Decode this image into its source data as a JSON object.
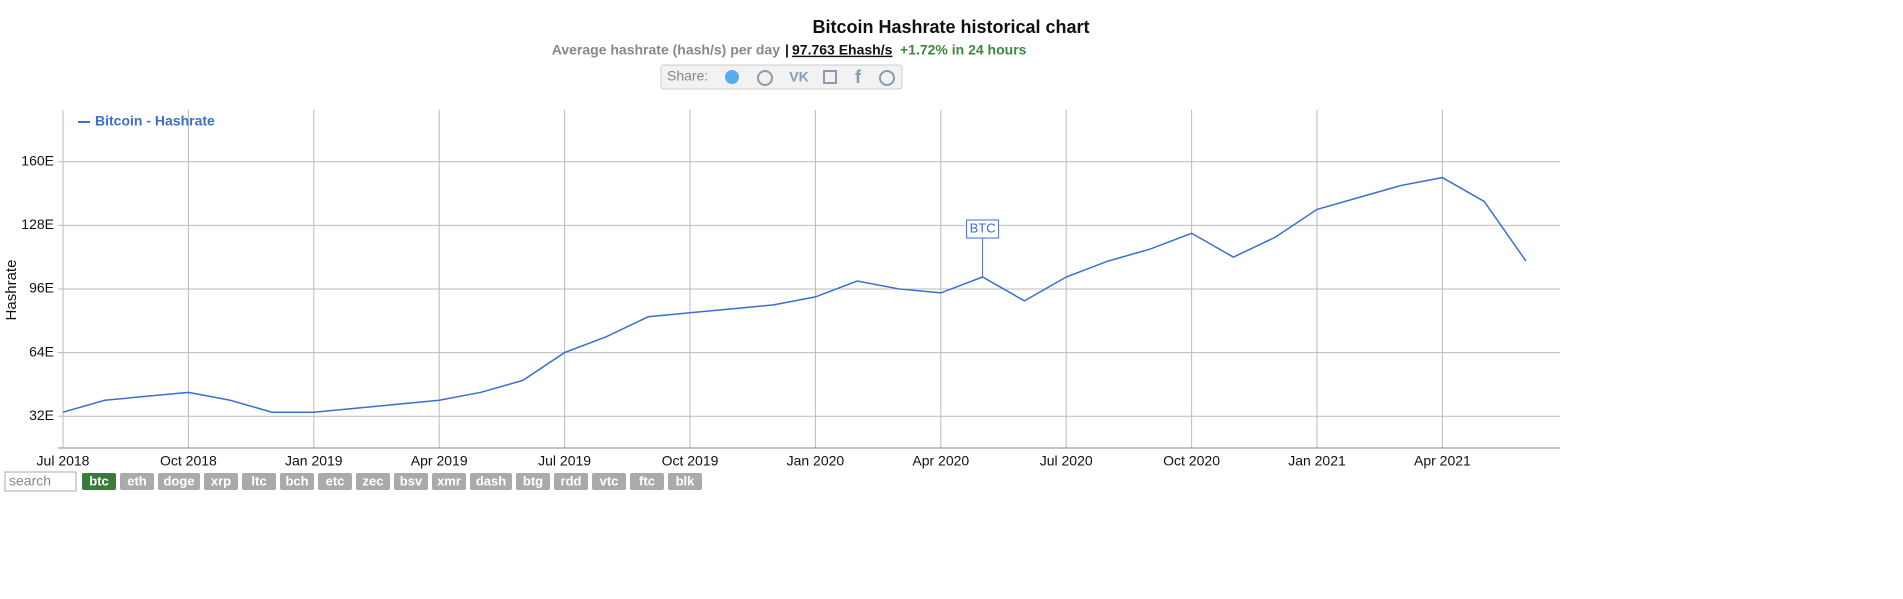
{
  "header": {
    "title": "Bitcoin Hashrate historical chart",
    "subtitle": "Average hashrate (hash/s) per day",
    "current_value": "97.763 Ehash/s",
    "change": "+1.72% in 24 hours",
    "share_label": "Share:"
  },
  "chart_data": {
    "type": "line",
    "y_label": "Hashrate",
    "annotation": "BTC",
    "grid": true,
    "legend_position": "top-left",
    "x": [
      "2018-07",
      "2018-08",
      "2018-09",
      "2018-10",
      "2018-11",
      "2018-12",
      "2019-01",
      "2019-02",
      "2019-03",
      "2019-04",
      "2019-05",
      "2019-06",
      "2019-07",
      "2019-08",
      "2019-09",
      "2019-10",
      "2019-11",
      "2019-12",
      "2020-01",
      "2020-02",
      "2020-03",
      "2020-04",
      "2020-05",
      "2020-06",
      "2020-07",
      "2020-08",
      "2020-09",
      "2020-10",
      "2020-11",
      "2020-12",
      "2021-01",
      "2021-02",
      "2021-03",
      "2021-04",
      "2021-05",
      "2021-06"
    ],
    "xticks": [
      {
        "value": "2018-07",
        "label": "Jul 2018"
      },
      {
        "value": "2018-10",
        "label": "Oct 2018"
      },
      {
        "value": "2019-01",
        "label": "Jan 2019"
      },
      {
        "value": "2019-04",
        "label": "Apr 2019"
      },
      {
        "value": "2019-07",
        "label": "Jul 2019"
      },
      {
        "value": "2019-10",
        "label": "Oct 2019"
      },
      {
        "value": "2020-01",
        "label": "Jan 2020"
      },
      {
        "value": "2020-04",
        "label": "Apr 2020"
      },
      {
        "value": "2020-07",
        "label": "Jul 2020"
      },
      {
        "value": "2020-10",
        "label": "Oct 2020"
      },
      {
        "value": "2021-01",
        "label": "Jan 2021"
      },
      {
        "value": "2021-04",
        "label": "Apr 2021"
      }
    ],
    "ylim": [
      16,
      186
    ],
    "yticks": [
      {
        "value": 32,
        "label": "32E"
      },
      {
        "value": 64,
        "label": "64E"
      },
      {
        "value": 96,
        "label": "96E"
      },
      {
        "value": 128,
        "label": "128E"
      },
      {
        "value": 160,
        "label": "160E"
      }
    ],
    "series": [
      {
        "name": "Bitcoin - Hashrate",
        "color": "#3a6fd1",
        "values": [
          34,
          40,
          42,
          44,
          40,
          34,
          34,
          36,
          38,
          40,
          44,
          50,
          64,
          72,
          82,
          84,
          86,
          88,
          92,
          100,
          96,
          94,
          102,
          90,
          102,
          110,
          116,
          124,
          112,
          122,
          136,
          142,
          148,
          152,
          140,
          110
        ]
      }
    ]
  },
  "footer": {
    "search": "search",
    "coins": [
      "btc",
      "eth",
      "doge",
      "xrp",
      "ltc",
      "bch",
      "etc",
      "zec",
      "bsv",
      "xmr",
      "dash",
      "btg",
      "rdd",
      "vtc",
      "ftc",
      "blk"
    ]
  }
}
